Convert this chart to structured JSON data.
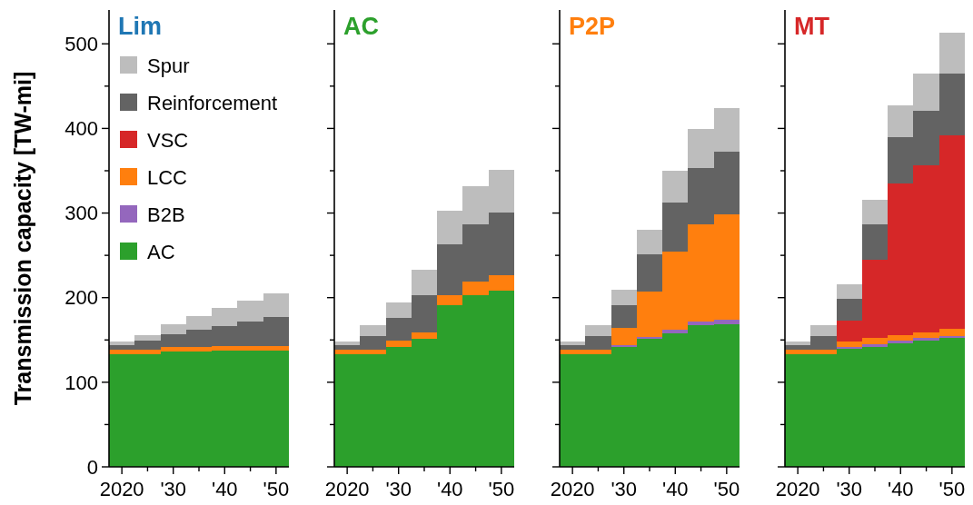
{
  "chart_data": [
    {
      "type": "bar",
      "stacked": true,
      "title": "Lim",
      "ylabel": "Transmission capacity [TW-mi]",
      "x": [
        2020,
        2025,
        2030,
        2035,
        2040,
        2045,
        2050
      ],
      "xlim": [
        2017.5,
        2052.5
      ],
      "xticks": [
        {
          "value": 2020,
          "label": "2020"
        },
        {
          "value": 2025,
          "label": null
        },
        {
          "value": 2030,
          "label": "'30"
        },
        {
          "value": 2035,
          "label": null
        },
        {
          "value": 2040,
          "label": "'40"
        },
        {
          "value": 2045,
          "label": null
        },
        {
          "value": 2050,
          "label": "'50"
        }
      ],
      "ylim": [
        0,
        540
      ],
      "yticks": [
        0,
        {
          "value": 50,
          "label": null
        },
        100,
        {
          "value": 150,
          "label": null
        },
        200,
        {
          "value": 250,
          "label": null
        },
        300,
        {
          "value": 350,
          "label": null
        },
        400,
        {
          "value": 450,
          "label": null
        },
        500
      ],
      "legend": "top left",
      "series": [
        {
          "name": "AC",
          "color": "#2ca02c",
          "values": [
            133,
            133,
            136,
            136,
            137,
            137,
            137
          ]
        },
        {
          "name": "B2B",
          "color": "#9467bd",
          "values": [
            0,
            0,
            0,
            0,
            0,
            0,
            0
          ]
        },
        {
          "name": "LCC",
          "color": "#ff7f0e",
          "values": [
            5,
            5,
            6,
            6,
            6,
            6,
            6
          ]
        },
        {
          "name": "VSC",
          "color": "#d62728",
          "values": [
            0,
            0,
            0,
            0,
            0,
            0,
            0
          ]
        },
        {
          "name": "Reinforcement",
          "color": "#636363",
          "values": [
            6,
            11,
            15,
            20,
            23,
            29,
            34
          ]
        },
        {
          "name": "Spur",
          "color": "#bdbdbd",
          "values": [
            4,
            7,
            12,
            16,
            22,
            24,
            28
          ]
        }
      ]
    },
    {
      "type": "bar",
      "stacked": true,
      "title": "AC",
      "x": [
        2020,
        2025,
        2030,
        2035,
        2040,
        2045,
        2050
      ],
      "xlim": [
        2017.5,
        2052.5
      ],
      "xticks": [
        {
          "value": 2020,
          "label": "2020"
        },
        {
          "value": 2025,
          "label": null
        },
        {
          "value": 2030,
          "label": "'30"
        },
        {
          "value": 2035,
          "label": null
        },
        {
          "value": 2040,
          "label": "'40"
        },
        {
          "value": 2045,
          "label": null
        },
        {
          "value": 2050,
          "label": "'50"
        }
      ],
      "ylim": [
        0,
        540
      ],
      "yticks": [
        0,
        {
          "value": 50,
          "label": null
        },
        100,
        {
          "value": 150,
          "label": null
        },
        200,
        {
          "value": 250,
          "label": null
        },
        300,
        {
          "value": 350,
          "label": null
        },
        400,
        {
          "value": 450,
          "label": null
        },
        500
      ],
      "tick_labels": "x",
      "series": [
        {
          "color": "#2ca02c",
          "values": [
            133,
            133,
            142,
            151,
            191,
            203,
            208
          ]
        },
        {
          "color": "#9467bd",
          "values": [
            0,
            0,
            0,
            0,
            0,
            0,
            0
          ]
        },
        {
          "color": "#ff7f0e",
          "values": [
            5,
            5,
            7,
            8,
            12,
            16,
            19
          ]
        },
        {
          "color": "#d62728",
          "values": [
            0,
            0,
            0,
            0,
            0,
            0,
            0
          ]
        },
        {
          "color": "#636363",
          "values": [
            6,
            17,
            27,
            44,
            60,
            68,
            74
          ]
        },
        {
          "color": "#bdbdbd",
          "values": [
            4,
            12,
            18,
            30,
            40,
            45,
            50
          ]
        }
      ]
    },
    {
      "type": "bar",
      "stacked": true,
      "title": "P2P",
      "x": [
        2020,
        2025,
        2030,
        2035,
        2040,
        2045,
        2050
      ],
      "xlim": [
        2017.5,
        2052.5
      ],
      "xticks": [
        {
          "value": 2020,
          "label": "2020"
        },
        {
          "value": 2025,
          "label": null
        },
        {
          "value": 2030,
          "label": "'30"
        },
        {
          "value": 2035,
          "label": null
        },
        {
          "value": 2040,
          "label": "'40"
        },
        {
          "value": 2045,
          "label": null
        },
        {
          "value": 2050,
          "label": "'50"
        }
      ],
      "ylim": [
        0,
        540
      ],
      "yticks": [
        0,
        {
          "value": 50,
          "label": null
        },
        100,
        {
          "value": 150,
          "label": null
        },
        200,
        {
          "value": 250,
          "label": null
        },
        300,
        {
          "value": 350,
          "label": null
        },
        400,
        {
          "value": 450,
          "label": null
        },
        500
      ],
      "tick_labels": "x",
      "series": [
        {
          "color": "#2ca02c",
          "values": [
            133,
            133,
            142,
            151,
            158,
            168,
            169
          ]
        },
        {
          "color": "#9467bd",
          "values": [
            0,
            0,
            2,
            3,
            4,
            4,
            5
          ]
        },
        {
          "color": "#ff7f0e",
          "values": [
            5,
            5,
            20,
            53,
            92,
            115,
            124
          ]
        },
        {
          "color": "#d62728",
          "values": [
            0,
            0,
            0,
            0,
            0,
            0,
            0
          ]
        },
        {
          "color": "#636363",
          "values": [
            6,
            17,
            27,
            44,
            58,
            66,
            75
          ]
        },
        {
          "color": "#bdbdbd",
          "values": [
            4,
            12,
            18,
            29,
            38,
            46,
            51
          ]
        }
      ]
    },
    {
      "type": "bar",
      "stacked": true,
      "title": "MT",
      "x": [
        2020,
        2025,
        2030,
        2035,
        2040,
        2045,
        2050
      ],
      "xlim": [
        2017.5,
        2052.5
      ],
      "xticks": [
        {
          "value": 2020,
          "label": "2020"
        },
        {
          "value": 2025,
          "label": null
        },
        {
          "value": 2030,
          "label": "'30"
        },
        {
          "value": 2035,
          "label": null
        },
        {
          "value": 2040,
          "label": "'40"
        },
        {
          "value": 2045,
          "label": null
        },
        {
          "value": 2050,
          "label": "'50"
        }
      ],
      "ylim": [
        0,
        540
      ],
      "yticks": [
        0,
        {
          "value": 50,
          "label": null
        },
        100,
        {
          "value": 150,
          "label": null
        },
        200,
        {
          "value": 250,
          "label": null
        },
        300,
        {
          "value": 350,
          "label": null
        },
        400,
        {
          "value": 450,
          "label": null
        },
        500
      ],
      "tick_labels": "x",
      "series": [
        {
          "color": "#2ca02c",
          "values": [
            133,
            133,
            140,
            142,
            146,
            149,
            152
          ]
        },
        {
          "color": "#9467bd",
          "values": [
            0,
            0,
            2,
            3,
            3,
            3,
            3
          ]
        },
        {
          "color": "#ff7f0e",
          "values": [
            5,
            5,
            6,
            7,
            7,
            7,
            8
          ]
        },
        {
          "color": "#d62728",
          "values": [
            0,
            0,
            25,
            93,
            179,
            197,
            229
          ]
        },
        {
          "color": "#636363",
          "values": [
            6,
            17,
            26,
            42,
            55,
            65,
            73
          ]
        },
        {
          "color": "#bdbdbd",
          "values": [
            4,
            12,
            17,
            29,
            37,
            44,
            48
          ]
        }
      ]
    }
  ]
}
